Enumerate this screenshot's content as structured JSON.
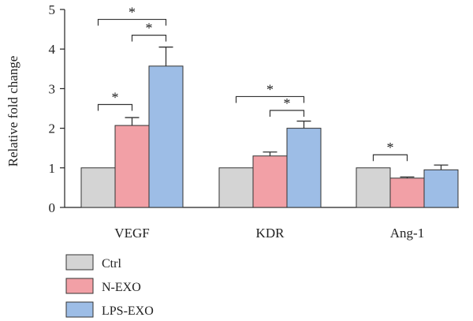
{
  "chart_data": {
    "type": "bar",
    "ylabel": "Relative fold change",
    "ylim": [
      0,
      5
    ],
    "yticks": [
      "0",
      "1",
      "2",
      "3",
      "4",
      "5"
    ],
    "categories": [
      "VEGF",
      "KDR",
      "Ang-1"
    ],
    "series": [
      {
        "name": "Ctrl",
        "values": [
          1.0,
          1.0,
          1.0
        ],
        "errors": [
          0,
          0,
          0
        ],
        "color": "#d4d4d4"
      },
      {
        "name": "N-EXO",
        "values": [
          2.07,
          1.3,
          0.74
        ],
        "errors": [
          0.2,
          0.1,
          0.03
        ],
        "color": "#f2a0a6"
      },
      {
        "name": "LPS-EXO",
        "values": [
          3.57,
          2.0,
          0.95
        ],
        "errors": [
          0.48,
          0.18,
          0.12
        ],
        "color": "#9dbde6"
      }
    ],
    "significance": [
      {
        "category": 0,
        "from": 0,
        "to": 2,
        "y": 4.75,
        "label": "*"
      },
      {
        "category": 0,
        "from": 1,
        "to": 2,
        "y": 4.35,
        "label": "*"
      },
      {
        "category": 0,
        "from": 0,
        "to": 1,
        "y": 2.6,
        "label": "*"
      },
      {
        "category": 1,
        "from": 0,
        "to": 2,
        "y": 2.8,
        "label": "*"
      },
      {
        "category": 1,
        "from": 1,
        "to": 2,
        "y": 2.45,
        "label": "*"
      },
      {
        "category": 2,
        "from": 0,
        "to": 1,
        "y": 1.33,
        "label": "*"
      }
    ],
    "grid": false,
    "legend_position": "bottom-left"
  }
}
